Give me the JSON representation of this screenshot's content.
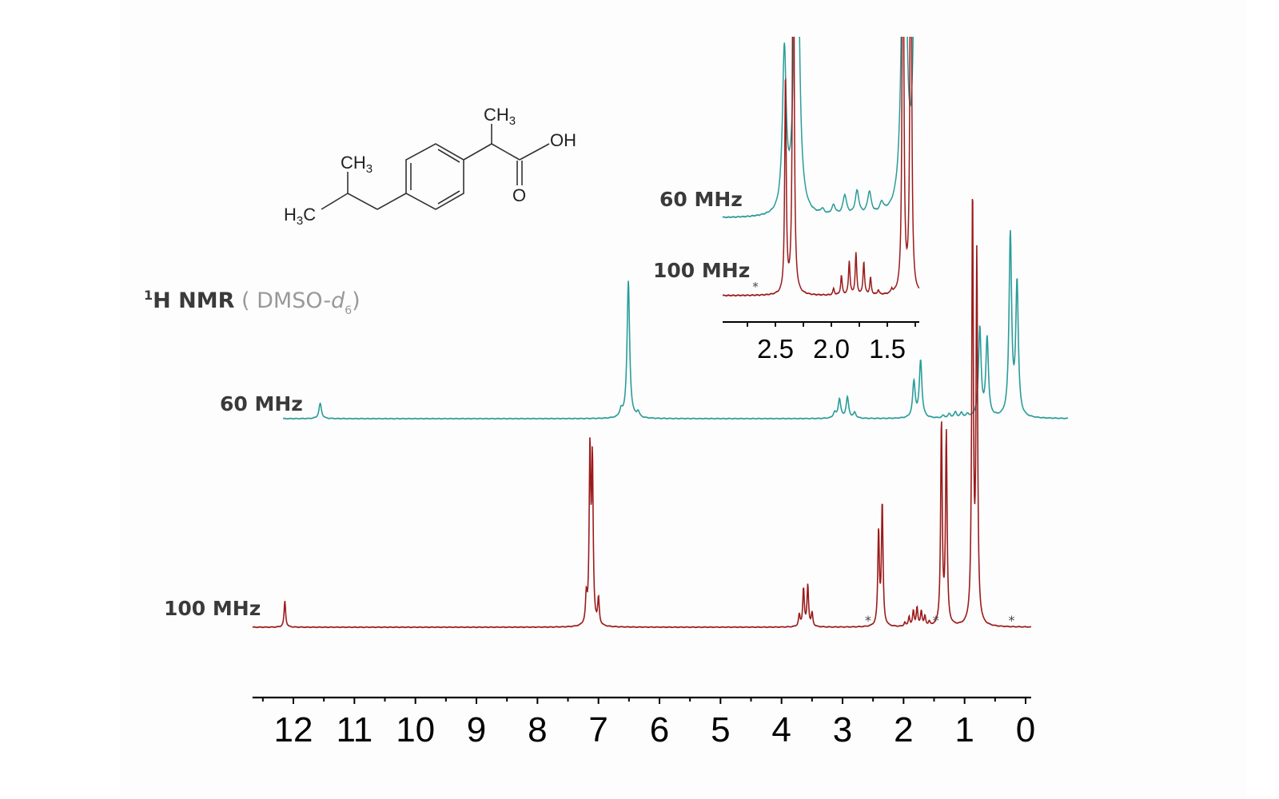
{
  "chart_data": [
    {
      "type": "line",
      "title": "",
      "annotation_title": {
        "nucleus_sup": "1",
        "nucleus": "H NMR",
        "solvent_open": "( DMSO-",
        "solvent_italic": "d",
        "solvent_sub": "6",
        "solvent_close": ")"
      },
      "xlabel": "",
      "ylabel": "",
      "xlim": [
        12.67,
        -0.09
      ],
      "x_reversed": true,
      "xticks": [
        12,
        11,
        10,
        9,
        8,
        7,
        6,
        5,
        4,
        3,
        2,
        1,
        0
      ],
      "xtick_labels": [
        "12",
        "11",
        "10",
        "9",
        "8",
        "7",
        "6",
        "5",
        "4",
        "3",
        "2",
        "1",
        "0"
      ],
      "minor_tick_step": 0.5,
      "grid": false,
      "series": [
        {
          "name": "60 MHz",
          "color": "#2a9d9a",
          "x_range": [
            12.17,
            -0.7
          ],
          "linewidth_ppm": 0.025,
          "peaks": [
            {
              "ppm": 11.56,
              "intensity": 19
            },
            {
              "ppm": 6.63,
              "intensity": 9
            },
            {
              "ppm": 6.51,
              "intensity": 172
            },
            {
              "ppm": 6.35,
              "intensity": 7
            },
            {
              "ppm": 3.13,
              "intensity": 7
            },
            {
              "ppm": 3.05,
              "intensity": 24
            },
            {
              "ppm": 2.92,
              "intensity": 26
            },
            {
              "ppm": 2.8,
              "intensity": 7
            },
            {
              "ppm": 1.83,
              "intensity": 45
            },
            {
              "ppm": 1.72,
              "intensity": 72
            },
            {
              "ppm": 1.35,
              "intensity": 3
            },
            {
              "ppm": 1.25,
              "intensity": 5
            },
            {
              "ppm": 1.15,
              "intensity": 7
            },
            {
              "ppm": 1.05,
              "intensity": 6
            },
            {
              "ppm": 0.95,
              "intensity": 4
            },
            {
              "ppm": 0.75,
              "intensity": 112
            },
            {
              "ppm": 0.63,
              "intensity": 99
            },
            {
              "ppm": 0.25,
              "intensity": 228
            },
            {
              "ppm": 0.14,
              "intensity": 166
            }
          ]
        },
        {
          "name": "100 MHz",
          "color": "#9b1b1b",
          "x_range": [
            12.67,
            -0.09
          ],
          "linewidth_ppm": 0.015,
          "peaks": [
            {
              "ppm": 12.14,
              "intensity": 33
            },
            {
              "ppm": 7.2,
              "intensity": 33
            },
            {
              "ppm": 7.14,
              "intensity": 215
            },
            {
              "ppm": 7.1,
              "intensity": 200
            },
            {
              "ppm": 7.0,
              "intensity": 33
            },
            {
              "ppm": 3.71,
              "intensity": 15
            },
            {
              "ppm": 3.64,
              "intensity": 48
            },
            {
              "ppm": 3.57,
              "intensity": 52
            },
            {
              "ppm": 3.5,
              "intensity": 17
            },
            {
              "ppm": 2.41,
              "intensity": 118
            },
            {
              "ppm": 2.35,
              "intensity": 153
            },
            {
              "ppm": 1.98,
              "intensity": 5
            },
            {
              "ppm": 1.91,
              "intensity": 12
            },
            {
              "ppm": 1.84,
              "intensity": 19
            },
            {
              "ppm": 1.78,
              "intensity": 23
            },
            {
              "ppm": 1.71,
              "intensity": 19
            },
            {
              "ppm": 1.65,
              "intensity": 12
            },
            {
              "ppm": 1.58,
              "intensity": 5
            },
            {
              "ppm": 1.38,
              "intensity": 255
            },
            {
              "ppm": 1.3,
              "intensity": 240
            },
            {
              "ppm": 0.87,
              "intensity": 538
            },
            {
              "ppm": 0.8,
              "intensity": 455
            }
          ]
        }
      ],
      "impurity_markers": [
        {
          "ppm": 2.58,
          "label": "*"
        },
        {
          "ppm": 1.47,
          "label": "*"
        },
        {
          "ppm": 0.23,
          "label": "*"
        }
      ]
    },
    {
      "type": "line",
      "title": "",
      "role": "inset",
      "xlim": [
        2.97,
        1.21
      ],
      "x_reversed": true,
      "xticks": [
        2.5,
        2.0,
        1.5
      ],
      "xtick_labels": [
        "2.5",
        "2.0",
        "1.5"
      ],
      "minor_ticks": [
        2.75,
        2.25,
        1.75,
        1.25
      ],
      "grid": false,
      "series": [
        {
          "name": "60 MHz",
          "color": "#2a9d9a",
          "linewidth_ppm": 0.02,
          "peaks": [
            {
              "ppm": 2.42,
              "intensity": 200
            },
            {
              "ppm": 2.31,
              "intensity": 600
            },
            {
              "ppm": 2.08,
              "intensity": 6
            },
            {
              "ppm": 1.98,
              "intensity": 12
            },
            {
              "ppm": 1.88,
              "intensity": 25
            },
            {
              "ppm": 1.77,
              "intensity": 30
            },
            {
              "ppm": 1.66,
              "intensity": 28
            },
            {
              "ppm": 1.55,
              "intensity": 12
            },
            {
              "ppm": 1.35,
              "intensity": 600
            },
            {
              "ppm": 1.24,
              "intensity": 600
            }
          ]
        },
        {
          "name": "100 MHz",
          "color": "#9b1b1b",
          "linewidth_ppm": 0.008,
          "peaks": [
            {
              "ppm": 2.41,
              "intensity": 270
            },
            {
              "ppm": 2.34,
              "intensity": 600
            },
            {
              "ppm": 1.98,
              "intensity": 8
            },
            {
              "ppm": 1.91,
              "intensity": 24
            },
            {
              "ppm": 1.84,
              "intensity": 42
            },
            {
              "ppm": 1.78,
              "intensity": 52
            },
            {
              "ppm": 1.71,
              "intensity": 41
            },
            {
              "ppm": 1.65,
              "intensity": 21
            },
            {
              "ppm": 1.58,
              "intensity": 6
            },
            {
              "ppm": 1.46,
              "intensity": 5
            },
            {
              "ppm": 1.36,
              "intensity": 600
            },
            {
              "ppm": 1.29,
              "intensity": 600
            }
          ]
        }
      ],
      "impurity_markers": [
        {
          "ppm": 2.6,
          "label": "*"
        }
      ]
    }
  ],
  "structure": {
    "labels": {
      "ch3_top": "CH",
      "ch3_top_sub": "3",
      "oh": "OH",
      "o": "O",
      "ch3_iso": "CH",
      "ch3_iso_sub": "3",
      "h3c": "H",
      "h3c_sub": "3",
      "h3c_c": "C"
    }
  },
  "labels": {
    "series_60": "60 MHz",
    "series_100": "100 MHz",
    "inset_60": "60 MHz",
    "inset_100": "100 MHz"
  }
}
